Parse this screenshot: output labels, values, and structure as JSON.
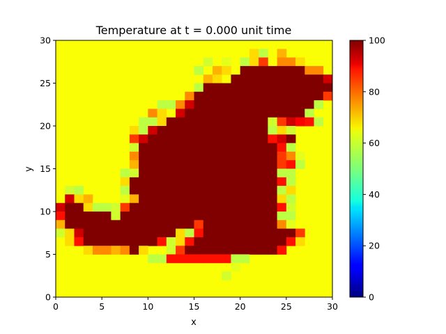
{
  "chart_data": {
    "type": "heatmap",
    "title": "Temperature at t = 0.000 unit time",
    "xlabel": "x",
    "ylabel": "y",
    "xlim": [
      0,
      30
    ],
    "ylim": [
      0,
      30
    ],
    "grid_size": 30,
    "xticks": [
      "0",
      "5",
      "10",
      "15",
      "20",
      "25",
      "30"
    ],
    "yticks": [
      "0",
      "5",
      "10",
      "15",
      "20",
      "25",
      "30"
    ],
    "colorbar": {
      "range": [
        0,
        100
      ],
      "ticks": [
        "0",
        "20",
        "40",
        "60",
        "80",
        "100"
      ],
      "colormap": "jet"
    },
    "background_value": 62,
    "rows_top_to_bottom": [
      "..............................",
      ".....................bd.e.....",
      "................c.a.dbg.ffb...",
      "...............d.eb.DDDDDDDff.",
      "................eb.DDDDDDDDDDi",
      "...............dDDDDDDDDDDDDDD",
      "..............fDDDDDDDDDDDDDDg",
      "...........ddfiDDDDDDDDDDDDDd.",
      "..........fb.iDDDDDDDDDDDDDd..",
      ".........ddbDDDDDDDDDDDcgijhd..",
      "........bdiDDDDDDDDDDDDdbc.....",
      "........giDDDDDDDDDDDDDhiD.....",
      "........cDDDDDDDDDDDDDDDhd.....",
      "........fDDDDDDDDDDDDDDDgfa.....",
      "........eDDDDDDDDDDDDDDDghd.....",
      ".......dcDDDDDDDDDDDDDDDdd......",
      ".......bDDDDDDDDDDDDDDDDhd......",
      ".cd....dDDDDDDDDDDDDDDDDdb......",
      ".ibe...aeDDDDDDDDDDDDDDDbd......",
      "iDDbddcgDDDDDDDDDDDDDDDDhc......",
      "hDDDDDcDDDDDDDDDDDDDDDDDdd......",
      "eDDDDDDDDDDDDDDgDDDDDDDDfa......",
      "cbiDDDDDDDDDDbdhDDDDDDDDDDg.....",
      ".bhDDDDDDDDhcbhDDDDDDDDDDhb.....",
      "...bffefDb..cgDDDDDDDDDDh.......",
      "..........ddhhhhhhhdd...........",
      "...................a............",
      "..................c.............",
      "..............................",
      ".............................."
    ],
    "value_codes": {
      ".": 62,
      "a": 60,
      "b": 66,
      "c": 58,
      "d": 56,
      "e": 70,
      "f": 74,
      "g": 82,
      "h": 86,
      "i": 92,
      "j": 88,
      "D": 100
    }
  }
}
